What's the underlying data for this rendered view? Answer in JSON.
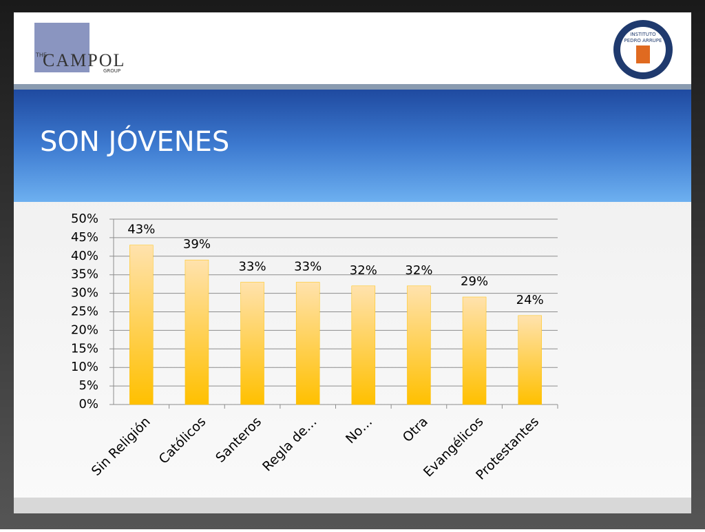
{
  "logos": {
    "left": {
      "small": "THE",
      "main": "CAMPOL",
      "sub": "GROUP"
    },
    "right": {
      "line1": "INSTITUTO",
      "line2": "PEDRO ARRUPE"
    }
  },
  "chart_data": {
    "type": "bar",
    "title": "SON JÓVENES",
    "categories": [
      "Sin Religión",
      "Católicos",
      "Santeros",
      "Regla de…",
      "No…",
      "Otra",
      "Evangélicos",
      "Protestantes"
    ],
    "values": [
      43,
      39,
      33,
      33,
      32,
      32,
      29,
      24
    ],
    "value_labels": [
      "43%",
      "39%",
      "33%",
      "33%",
      "32%",
      "32%",
      "29%",
      "24%"
    ],
    "color": "#ffc000",
    "ylim": [
      0,
      50
    ],
    "yticks": [
      {
        "value": 0,
        "label": "0%"
      },
      {
        "value": 5,
        "label": "5%"
      },
      {
        "value": 10,
        "label": "10%"
      },
      {
        "value": 15,
        "label": "15%"
      },
      {
        "value": 20,
        "label": "20%"
      },
      {
        "value": 25,
        "label": "25%"
      },
      {
        "value": 30,
        "label": "30%"
      },
      {
        "value": 35,
        "label": "35%"
      },
      {
        "value": 40,
        "label": "40%"
      },
      {
        "value": 45,
        "label": "45%"
      },
      {
        "value": 50,
        "label": "50%"
      }
    ],
    "grid": true
  }
}
